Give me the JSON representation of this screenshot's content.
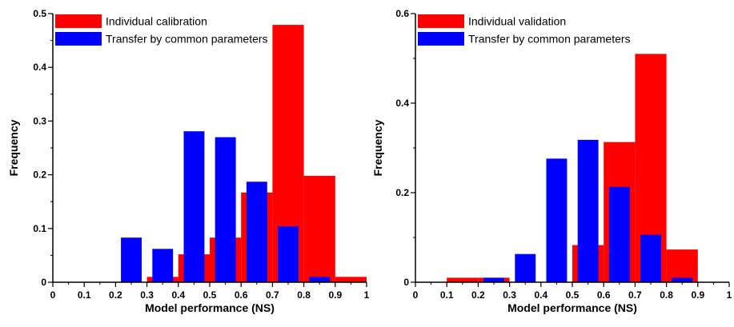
{
  "colors": {
    "calibration": "#ff0000",
    "validation": "#ff0000",
    "transfer": "#0000ff",
    "axis": "#000000"
  },
  "chart_data": [
    {
      "type": "bar",
      "xlabel": "Model performance (NS)",
      "ylabel": "Frequency",
      "xlim": [
        0,
        1
      ],
      "ylim": [
        0,
        0.5
      ],
      "xticks": [
        "0",
        "0.1",
        "0.2",
        "0.3",
        "0.4",
        "0.5",
        "0.6",
        "0.7",
        "0.8",
        "0.9",
        "1"
      ],
      "yticks": [
        "0",
        "0.1",
        "0.2",
        "0.3",
        "0.4",
        "0.5"
      ],
      "legend_position": "top-left",
      "grid": false,
      "series": [
        {
          "name": "Individual calibration",
          "color": "#ff0000",
          "bin_width": 0.1,
          "bins": [
            {
              "from": 0.3,
              "to": 0.4,
              "value": 0.01
            },
            {
              "from": 0.4,
              "to": 0.5,
              "value": 0.052
            },
            {
              "from": 0.5,
              "to": 0.6,
              "value": 0.083
            },
            {
              "from": 0.6,
              "to": 0.7,
              "value": 0.167
            },
            {
              "from": 0.7,
              "to": 0.8,
              "value": 0.479
            },
            {
              "from": 0.8,
              "to": 0.9,
              "value": 0.198
            },
            {
              "from": 0.9,
              "to": 1.0,
              "value": 0.01
            }
          ]
        },
        {
          "name": "Transfer by common parameters",
          "color": "#0000ff",
          "bin_width": 0.067,
          "bins": [
            {
              "from": 0.217,
              "to": 0.283,
              "value": 0.083
            },
            {
              "from": 0.317,
              "to": 0.383,
              "value": 0.062
            },
            {
              "from": 0.417,
              "to": 0.483,
              "value": 0.281
            },
            {
              "from": 0.517,
              "to": 0.583,
              "value": 0.27
            },
            {
              "from": 0.617,
              "to": 0.683,
              "value": 0.187
            },
            {
              "from": 0.717,
              "to": 0.783,
              "value": 0.104
            },
            {
              "from": 0.817,
              "to": 0.883,
              "value": 0.01
            }
          ]
        }
      ]
    },
    {
      "type": "bar",
      "xlabel": "Model performance (NS)",
      "ylabel": "Frequency",
      "xlim": [
        0,
        1
      ],
      "ylim": [
        0,
        0.6
      ],
      "xticks": [
        "0",
        "0.1",
        "0.2",
        "0.3",
        "0.4",
        "0.5",
        "0.6",
        "0.7",
        "0.8",
        "0.9",
        "1"
      ],
      "yticks": [
        "0",
        "0.2",
        "0.4",
        "0.6"
      ],
      "legend_position": "top-left",
      "grid": false,
      "series": [
        {
          "name": "Individual validation",
          "color": "#ff0000",
          "bin_width": 0.1,
          "bins": [
            {
              "from": 0.1,
              "to": 0.2,
              "value": 0.01
            },
            {
              "from": 0.2,
              "to": 0.3,
              "value": 0.01
            },
            {
              "from": 0.5,
              "to": 0.6,
              "value": 0.083
            },
            {
              "from": 0.6,
              "to": 0.7,
              "value": 0.313
            },
            {
              "from": 0.7,
              "to": 0.8,
              "value": 0.51
            },
            {
              "from": 0.8,
              "to": 0.9,
              "value": 0.073
            }
          ]
        },
        {
          "name": "Transfer by common parameters",
          "color": "#0000ff",
          "bin_width": 0.067,
          "bins": [
            {
              "from": 0.217,
              "to": 0.283,
              "value": 0.01
            },
            {
              "from": 0.317,
              "to": 0.383,
              "value": 0.063
            },
            {
              "from": 0.417,
              "to": 0.483,
              "value": 0.276
            },
            {
              "from": 0.517,
              "to": 0.583,
              "value": 0.318
            },
            {
              "from": 0.617,
              "to": 0.683,
              "value": 0.213
            },
            {
              "from": 0.717,
              "to": 0.783,
              "value": 0.106
            },
            {
              "from": 0.817,
              "to": 0.883,
              "value": 0.01
            }
          ]
        }
      ]
    }
  ]
}
